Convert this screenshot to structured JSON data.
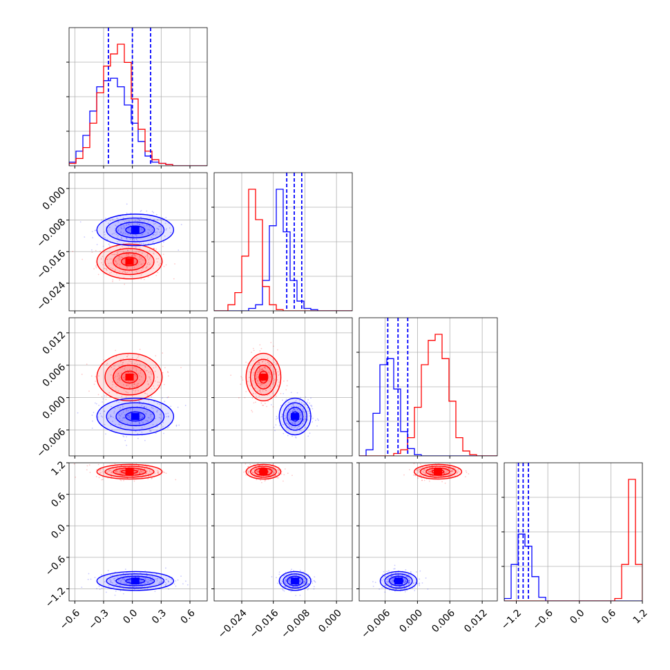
{
  "chart_data": {
    "type": "corner",
    "parameters": 4,
    "ranges": [
      [
        -0.66,
        0.78
      ],
      [
        -0.031,
        0.004
      ],
      [
        -0.0108,
        0.0148
      ],
      [
        -1.43,
        1.2
      ]
    ],
    "ticks": [
      {
        "values": [
          -0.6,
          -0.3,
          0.0,
          0.3,
          0.6
        ],
        "labels": [
          "−0.6",
          "−0.3",
          "0.0",
          "0.3",
          "0.6"
        ]
      },
      {
        "values": [
          -0.024,
          -0.016,
          -0.008,
          0.0
        ],
        "labels": [
          "−0.024",
          "−0.016",
          "−0.008",
          "0.000"
        ]
      },
      {
        "values": [
          -0.006,
          0.0,
          0.006,
          0.012
        ],
        "labels": [
          "−0.006",
          "0.000",
          "0.006",
          "0.012"
        ]
      },
      {
        "values": [
          -1.2,
          -0.6,
          0.0,
          0.6,
          1.2
        ],
        "labels": [
          "−1.2",
          "−0.6",
          "0.0",
          "0.6",
          "1.2"
        ]
      }
    ],
    "colors": {
      "red": "#ff0000",
      "blue": "#0000ff",
      "grid": "#b0b0b0"
    },
    "grid": true,
    "series": [
      {
        "color": "#ff0000",
        "mean": [
          -0.03,
          -0.0185,
          0.0038,
          1.03
        ],
        "sd": [
          0.17,
          0.0022,
          0.0022,
          0.07
        ]
      },
      {
        "color": "#0000ff",
        "mean": [
          0.03,
          -0.0105,
          -0.0035,
          -1.05
        ],
        "sd": [
          0.2,
          0.002,
          0.0017,
          0.09
        ]
      }
    ],
    "quantiles": [
      {
        "color": "#0000ff",
        "values": [
          -0.25,
          0.0,
          0.19
        ]
      },
      {
        "color": "#0000ff",
        "values": [
          -0.0126,
          -0.0107,
          -0.0088
        ]
      },
      {
        "color": "#0000ff",
        "values": [
          -0.0055,
          -0.0036,
          -0.0018
        ]
      },
      {
        "color": "#0000ff",
        "values": [
          -1.16,
          -1.07,
          -0.97
        ]
      }
    ],
    "histograms": [
      {
        "red": [
          0.02,
          0.06,
          0.15,
          0.35,
          0.6,
          0.82,
          0.92,
          1.0,
          0.85,
          0.55,
          0.3,
          0.12,
          0.05,
          0.02,
          0.01,
          0,
          0,
          0,
          0,
          0
        ],
        "blue": [
          0.03,
          0.12,
          0.25,
          0.45,
          0.65,
          0.7,
          0.72,
          0.65,
          0.5,
          0.35,
          0.2,
          0.08,
          0.03,
          0.02,
          0.01,
          0,
          0,
          0,
          0,
          0
        ]
      },
      {
        "red": [
          0,
          0,
          0.05,
          0.15,
          0.45,
          1.0,
          0.75,
          0.2,
          0.05,
          0.01,
          0,
          0,
          0,
          0,
          0,
          0,
          0,
          0,
          0,
          0
        ],
        "blue": [
          0,
          0,
          0,
          0,
          0,
          0.02,
          0.05,
          0.25,
          0.7,
          1.0,
          0.65,
          0.25,
          0.08,
          0.02,
          0.01,
          0,
          0,
          0,
          0,
          0
        ]
      },
      {
        "red": [
          0,
          0,
          0,
          0,
          0,
          0.02,
          0.05,
          0.15,
          0.4,
          0.75,
          0.95,
          1.0,
          0.8,
          0.45,
          0.15,
          0.04,
          0.01,
          0,
          0,
          0
        ],
        "blue": [
          0,
          0.05,
          0.35,
          0.75,
          0.8,
          0.55,
          0.2,
          0.06,
          0.01,
          0,
          0,
          0,
          0,
          0,
          0,
          0,
          0,
          0,
          0,
          0
        ]
      },
      {
        "red": [
          0,
          0,
          0,
          0,
          0,
          0,
          0,
          0,
          0,
          0,
          0,
          0,
          0,
          0,
          0,
          0,
          0.02,
          0.3,
          1.0,
          0.3
        ],
        "blue": [
          0.02,
          0.3,
          0.55,
          0.45,
          0.2,
          0.03,
          0,
          0,
          0,
          0,
          0,
          0,
          0,
          0,
          0,
          0,
          0,
          0,
          0,
          0
        ]
      }
    ]
  }
}
